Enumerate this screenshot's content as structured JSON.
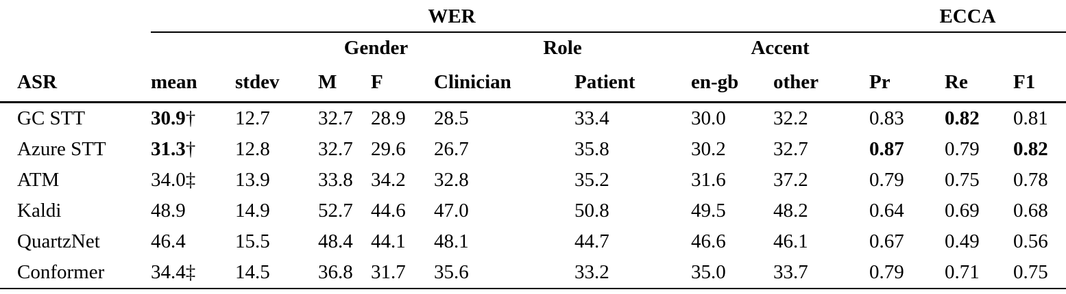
{
  "table": {
    "group_headers": {
      "wer": "WER",
      "ecca": "ECCA"
    },
    "subgroup_headers": {
      "gender": "Gender",
      "role": "Role",
      "accent": "Accent"
    },
    "columns": [
      "ASR",
      "mean",
      "stdev",
      "M",
      "F",
      "Clinician",
      "Patient",
      "en-gb",
      "other",
      "Pr",
      "Re",
      "F1"
    ],
    "rows": [
      {
        "asr": "GC STT",
        "cells": [
          {
            "text": "30.9",
            "mark": "†",
            "bold": true
          },
          {
            "text": "12.7"
          },
          {
            "text": "32.7"
          },
          {
            "text": "28.9"
          },
          {
            "text": "28.5"
          },
          {
            "text": "33.4"
          },
          {
            "text": "30.0"
          },
          {
            "text": "32.2"
          },
          {
            "text": "0.83"
          },
          {
            "text": "0.82",
            "bold": true
          },
          {
            "text": "0.81"
          }
        ]
      },
      {
        "asr": "Azure STT",
        "cells": [
          {
            "text": "31.3",
            "mark": "†",
            "bold": true
          },
          {
            "text": "12.8"
          },
          {
            "text": "32.7"
          },
          {
            "text": "29.6"
          },
          {
            "text": "26.7"
          },
          {
            "text": "35.8"
          },
          {
            "text": "30.2"
          },
          {
            "text": "32.7"
          },
          {
            "text": "0.87",
            "bold": true
          },
          {
            "text": "0.79"
          },
          {
            "text": "0.82",
            "bold": true
          }
        ]
      },
      {
        "asr": "ATM",
        "cells": [
          {
            "text": "34.0",
            "mark": "‡"
          },
          {
            "text": "13.9"
          },
          {
            "text": "33.8"
          },
          {
            "text": "34.2"
          },
          {
            "text": "32.8"
          },
          {
            "text": "35.2"
          },
          {
            "text": "31.6"
          },
          {
            "text": "37.2"
          },
          {
            "text": "0.79"
          },
          {
            "text": "0.75"
          },
          {
            "text": "0.78"
          }
        ]
      },
      {
        "asr": "Kaldi",
        "cells": [
          {
            "text": "48.9"
          },
          {
            "text": "14.9"
          },
          {
            "text": "52.7"
          },
          {
            "text": "44.6"
          },
          {
            "text": "47.0"
          },
          {
            "text": "50.8"
          },
          {
            "text": "49.5"
          },
          {
            "text": "48.2"
          },
          {
            "text": "0.64"
          },
          {
            "text": "0.69"
          },
          {
            "text": "0.68"
          }
        ]
      },
      {
        "asr": "QuartzNet",
        "cells": [
          {
            "text": "46.4"
          },
          {
            "text": "15.5"
          },
          {
            "text": "48.4"
          },
          {
            "text": "44.1"
          },
          {
            "text": "48.1"
          },
          {
            "text": "44.7"
          },
          {
            "text": "46.6"
          },
          {
            "text": "46.1"
          },
          {
            "text": "0.67"
          },
          {
            "text": "0.49"
          },
          {
            "text": "0.56"
          }
        ]
      },
      {
        "asr": "Conformer",
        "cells": [
          {
            "text": "34.4",
            "mark": "‡"
          },
          {
            "text": "14.5"
          },
          {
            "text": "36.8"
          },
          {
            "text": "31.7"
          },
          {
            "text": "35.6"
          },
          {
            "text": "33.2"
          },
          {
            "text": "35.0"
          },
          {
            "text": "33.7"
          },
          {
            "text": "0.79"
          },
          {
            "text": "0.71"
          },
          {
            "text": "0.75"
          }
        ]
      }
    ]
  }
}
